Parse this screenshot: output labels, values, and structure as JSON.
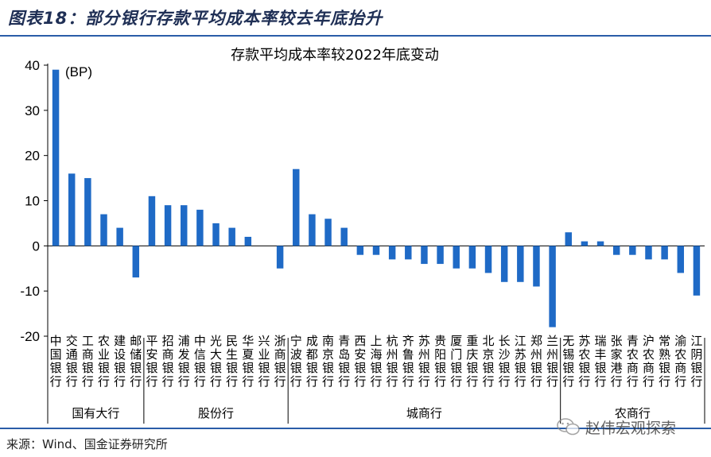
{
  "figure": {
    "label": "图表18：部分银行存款平均成本率较去年底抬升",
    "source": "来源：Wind、国金证券研究所",
    "watermark": "赵伟宏观探索",
    "bar_color": "#1f6ac6"
  },
  "chart_data": {
    "type": "bar",
    "title": "存款平均成本率较2022年底变动",
    "unit_label": "(BP)",
    "ylim": [
      -20,
      40
    ],
    "yticks": [
      40,
      30,
      20,
      10,
      0,
      -10,
      -20
    ],
    "grid": false,
    "categories": [
      "中国银行",
      "交通银行",
      "工商银行",
      "农业银行",
      "建设银行",
      "邮储银行",
      "平安银行",
      "招商银行",
      "浦发银行",
      "中信银行",
      "光大银行",
      "民生银行",
      "华夏银行",
      "兴业银行",
      "浙商银行",
      "宁波银行",
      "成都银行",
      "南京银行",
      "青岛银行",
      "西安银行",
      "上海银行",
      "杭州银行",
      "齐鲁银行",
      "苏州银行",
      "贵阳银行",
      "厦门银行",
      "重庆银行",
      "北京银行",
      "长沙银行",
      "江苏银行",
      "郑州银行",
      "兰州银行",
      "无锡银行",
      "苏农银行",
      "瑞丰银行",
      "张家港行",
      "青农商行",
      "沪农商行",
      "常熟银行",
      "渝农商行",
      "江阴银行"
    ],
    "values": [
      39,
      16,
      15,
      7,
      4,
      -7,
      11,
      9,
      9,
      8,
      5,
      4,
      2,
      0,
      -5,
      17,
      7,
      6,
      4,
      -2,
      -2,
      -3,
      -3,
      -4,
      -4,
      -5,
      -5,
      -6,
      -8,
      -8,
      -9,
      -18,
      3,
      1,
      1,
      -2,
      -2,
      -3,
      -3,
      -6,
      -11
    ],
    "groups": [
      {
        "name": "国有大行",
        "count": 6
      },
      {
        "name": "股份行",
        "count": 9
      },
      {
        "name": "城商行",
        "count": 17
      },
      {
        "name": "农商行",
        "count": 9
      }
    ]
  }
}
